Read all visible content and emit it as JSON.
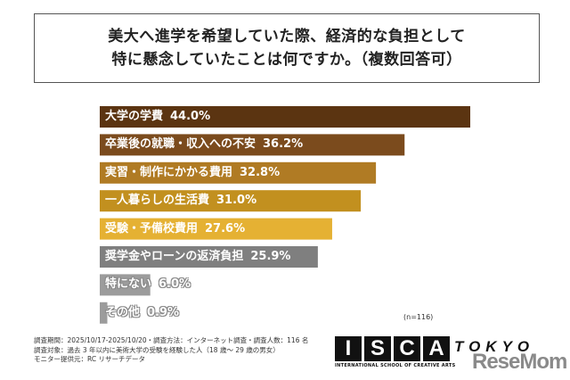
{
  "chart_data": {
    "type": "bar",
    "orientation": "horizontal",
    "title_lines": [
      "美大へ進学を希望していた際、経済的な負担として",
      "特に懸念していたことは何ですか。（複数回答可）"
    ],
    "categories": [
      "大学の学費",
      "卒業後の就職・収入への不安",
      "実習・制作にかかる費用",
      "一人暮らしの生活費",
      "受験・予備校費用",
      "奨学金やローンの返済負担",
      "特にない",
      "その他"
    ],
    "values": [
      44.0,
      36.2,
      32.8,
      31.0,
      27.6,
      25.9,
      6.0,
      0.9
    ],
    "value_labels": [
      "44.0%",
      "36.2%",
      "32.8%",
      "31.0%",
      "27.6%",
      "25.9%",
      "6.0%",
      "0.9%"
    ],
    "colors": [
      "#5b3411",
      "#7b4b1d",
      "#b07b24",
      "#c2901f",
      "#e5b133",
      "#7f7f7f",
      "#9c9c9c",
      "#9c9c9c"
    ],
    "xlim": [
      0,
      44
    ],
    "grid": false,
    "note": "(n=116)"
  },
  "footer": {
    "lines": [
      "調査期間：2025/10/17-2025/10/20・調査方法：インターネット調査・調査人数：116 名",
      "調査対象：過去 3 年以内に美術大学の受験を経験した人（18 歳〜 29 歳の男女）",
      "モニター提供元：RC リサーチデータ"
    ]
  },
  "logo": {
    "letters": [
      "I",
      "S",
      "C",
      "A"
    ],
    "subtitle": "INTERNATIONAL SCHOOL OF CREATIVE ARTS",
    "tokyo": "TOKYO",
    "watermark": "ReseMom"
  }
}
